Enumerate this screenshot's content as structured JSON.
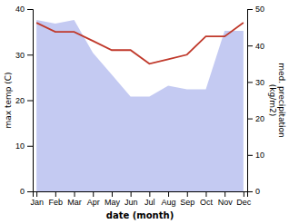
{
  "chart_data": {
    "type": "line",
    "categories": [
      "Jan",
      "Feb",
      "Mar",
      "Apr",
      "May",
      "Jun",
      "Jul",
      "Aug",
      "Sep",
      "Oct",
      "Nov",
      "Dec"
    ],
    "series": [
      {
        "type": "area",
        "axis": "y2",
        "color": "#b0b8ee",
        "values": [
          47,
          46,
          47,
          38,
          32,
          26,
          26,
          29,
          28,
          28,
          44,
          44
        ]
      },
      {
        "type": "line",
        "color": "#c0392b",
        "values": [
          37,
          35,
          35,
          33,
          31,
          31,
          28,
          29,
          30,
          34,
          34,
          37
        ]
      }
    ],
    "x_label": "date (month)",
    "y_label": "max temp (C)",
    "y2_label": "med. precipitation\n(kg/m2)",
    "ylim": [
      0,
      40
    ],
    "yticks": [
      0,
      10,
      20,
      30,
      40
    ],
    "y2lim": [
      0,
      50
    ],
    "y2ticks": [
      0,
      10,
      20,
      30,
      40,
      50
    ],
    "grid": false
  }
}
